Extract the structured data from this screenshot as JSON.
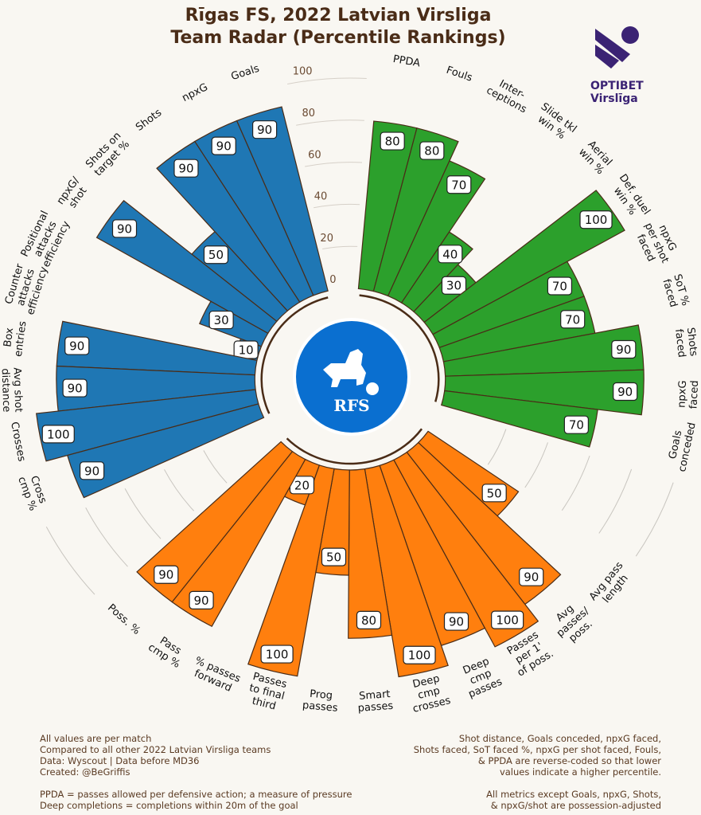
{
  "title_line1": "Rīgas FS, 2022 Latvian Virsliga",
  "title_line2": "Team Radar (Percentile Rankings)",
  "league_logo": {
    "line1": "OPTIBET",
    "line2": "Virslīga",
    "color": "#3b2374"
  },
  "team_logo": {
    "text": "RFS",
    "color": "#0a6fd0"
  },
  "footnotes_left": [
    "All values are per match",
    "Compared to all other 2022 Latvian Virsliga teams",
    "Data: Wyscout | Data before MD36",
    "Created: @BeGriffis",
    "",
    "PPDA = passes allowed per defensive action; a measure of pressure",
    "Deep completions = completions within 20m of the goal"
  ],
  "footnotes_right": [
    "Shot distance, Goals conceded, npxG faced,",
    "Shots faced, SoT faced %, npxG per shot faced, Fouls,",
    "& PPDA are reverse-coded so that lower",
    "values indicate a higher percentile.",
    "",
    "All metrics except Goals, npxG, Shots,",
    "& npxG/shot are possession-adjusted"
  ],
  "chart_data": {
    "type": "radial-bar",
    "rlim": [
      0,
      100
    ],
    "r_ticks": [
      "0",
      "20",
      "40",
      "60",
      "80",
      "100"
    ],
    "groups": [
      {
        "color": "#1f77b4",
        "metrics": [
          {
            "label": [
              "Goals"
            ],
            "value": 90
          },
          {
            "label": [
              "npxG"
            ],
            "value": 90
          },
          {
            "label": [
              "Shots"
            ],
            "value": 90
          },
          {
            "label": [
              "Shots on",
              "target %"
            ],
            "value": 50
          },
          {
            "label": [
              "npxG/",
              "shot"
            ],
            "value": 90
          },
          {
            "label": [
              "Positional",
              "attacks",
              "efficiency"
            ],
            "value": 30
          },
          {
            "label": [
              "Counter",
              "attacks",
              "efficiency"
            ],
            "value": 10
          },
          {
            "label": [
              "Box",
              "entries"
            ],
            "value": 90
          },
          {
            "label": [
              "Avg shot",
              "distance"
            ],
            "value": 90
          },
          {
            "label": [
              "Crosses"
            ],
            "value": 100
          },
          {
            "label": [
              "Cross",
              "cmp %"
            ],
            "value": 90
          }
        ]
      },
      {
        "color": "#2ca02c",
        "metrics": [
          {
            "label": [
              "PPDA"
            ],
            "value": 80
          },
          {
            "label": [
              "Fouls"
            ],
            "value": 80
          },
          {
            "label": [
              "Inter-",
              "ceptions"
            ],
            "value": 70
          },
          {
            "label": [
              "Slide tkl",
              "win %"
            ],
            "value": 40
          },
          {
            "label": [
              "Aerial",
              "win %"
            ],
            "value": 30
          },
          {
            "label": [
              "Def. duel",
              "win %"
            ],
            "value": 100
          },
          {
            "label": [
              "npxG",
              "per shot",
              "faced"
            ],
            "value": 70
          },
          {
            "label": [
              "SoT %",
              "faced"
            ],
            "value": 70
          },
          {
            "label": [
              "Shots",
              "faced"
            ],
            "value": 90
          },
          {
            "label": [
              "npxG",
              "faced"
            ],
            "value": 90
          },
          {
            "label": [
              "Goals",
              "conceded"
            ],
            "value": 70
          }
        ]
      },
      {
        "color": "#ff7f0e",
        "metrics": [
          {
            "label": [
              "Avg pass",
              "length"
            ],
            "value": 50
          },
          {
            "label": [
              "Avg",
              "passes/",
              "poss."
            ],
            "value": 90
          },
          {
            "label": [
              "Passes",
              "per 1'",
              "of poss."
            ],
            "value": 100
          },
          {
            "label": [
              "Deep",
              "cmp",
              "passes"
            ],
            "value": 90
          },
          {
            "label": [
              "Deep",
              "cmp",
              "crosses"
            ],
            "value": 100
          },
          {
            "label": [
              "Smart",
              "passes"
            ],
            "value": 80
          },
          {
            "label": [
              "Prog",
              "passes"
            ],
            "value": 50
          },
          {
            "label": [
              "Passes",
              "to final",
              "third"
            ],
            "value": 100
          },
          {
            "label": [
              "% passes",
              "forward"
            ],
            "value": 20
          },
          {
            "label": [
              "Pass",
              "cmp %"
            ],
            "value": 90
          },
          {
            "label": [
              "Poss. %"
            ],
            "value": 90
          }
        ]
      }
    ]
  }
}
